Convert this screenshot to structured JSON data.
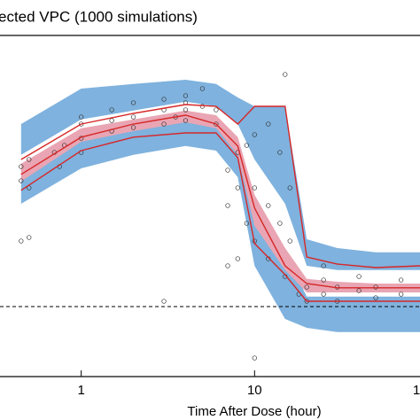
{
  "chart_data": {
    "type": "vpc",
    "title": "ected VPC (1000 simulations)",
    "x_label": "Time After Dose (hour)",
    "xscale": "log",
    "xlim": [
      0.34,
      90
    ],
    "ylim": [
      6.75,
      103
    ],
    "xticks": [
      1,
      10,
      {
        "value": 100,
        "label": "1"
      }
    ],
    "reference_line": 26.5,
    "x": [
      0.45,
      1,
      2,
      4,
      6,
      8,
      10,
      15,
      20,
      30,
      50,
      90
    ],
    "bands": [
      {
        "color": "#7fb2de",
        "lower": [
          69.3,
          79.3,
          81.8,
          84.3,
          83,
          78,
          68,
          55.5,
          38,
          36.8,
          36.8,
          36.8
        ],
        "upper": [
          78,
          88,
          89.3,
          90.5,
          89.3,
          85.5,
          83,
          83,
          45.5,
          43,
          41.8,
          41.8
        ]
      },
      {
        "color": "#7fb2de",
        "lower": [
          55.5,
          65.5,
          69.3,
          71.8,
          70.5,
          63,
          38,
          23,
          20.5,
          19.3,
          19.3,
          19.3
        ],
        "upper": [
          63,
          74.3,
          76.8,
          79.3,
          78,
          73,
          55.5,
          41.8,
          29.3,
          29.3,
          29.3,
          29.3
        ]
      },
      {
        "color": "#e9a5b3",
        "lower": [
          61.8,
          73,
          76,
          78.5,
          76.8,
          69.3,
          49.3,
          36.8,
          30.5,
          30.5,
          30.5,
          30.5
        ],
        "upper": [
          66.8,
          76.8,
          79.3,
          81.8,
          80.5,
          74.3,
          58,
          43,
          34.3,
          33.5,
          33,
          33
        ]
      }
    ],
    "series": [
      {
        "color": "#d62728",
        "values": [
          68,
          78,
          81,
          83.5,
          83,
          78,
          83,
          83,
          40.5,
          38.5,
          37.5,
          38
        ]
      },
      {
        "color": "#d62728",
        "values": [
          63.8,
          74.3,
          78,
          80.5,
          78,
          71.8,
          54.3,
          38,
          33,
          31.8,
          31.8,
          31.8
        ]
      },
      {
        "color": "#d62728",
        "values": [
          59.3,
          70.5,
          74.3,
          75.5,
          75.5,
          68.5,
          44.3,
          35.5,
          28,
          28,
          28,
          28
        ]
      }
    ],
    "points": {
      "x": [
        0.45,
        0.45,
        0.5,
        0.5,
        0.5,
        0.7,
        0.75,
        0.8,
        1,
        1,
        1,
        1,
        1.5,
        1.5,
        1.5,
        2,
        2,
        2,
        3,
        3,
        3,
        3.5,
        4,
        4,
        4,
        4,
        5,
        5,
        6,
        6,
        7,
        7,
        8,
        8,
        8,
        9,
        9,
        10,
        10,
        10,
        10,
        12,
        12,
        12,
        14,
        14,
        15,
        15,
        16,
        16,
        18,
        20,
        20,
        25,
        25,
        25,
        30,
        30,
        40,
        40,
        50,
        50,
        70,
        70,
        3,
        0.45,
        7
      ],
      "y": [
        62,
        66,
        60,
        68,
        46,
        70,
        66,
        72,
        74,
        78,
        70,
        80,
        79,
        76,
        82,
        80,
        77,
        84,
        82,
        85,
        78,
        80,
        84,
        82,
        86,
        79,
        83,
        88,
        82,
        78,
        65,
        55,
        70,
        60,
        40,
        50,
        72,
        75,
        60,
        45,
        12,
        78,
        55,
        40,
        70,
        50,
        92,
        35,
        60,
        45,
        30,
        32,
        28,
        34,
        30,
        38,
        32,
        28,
        31,
        35,
        32,
        29,
        30,
        34,
        28,
        45,
        38
      ]
    }
  }
}
